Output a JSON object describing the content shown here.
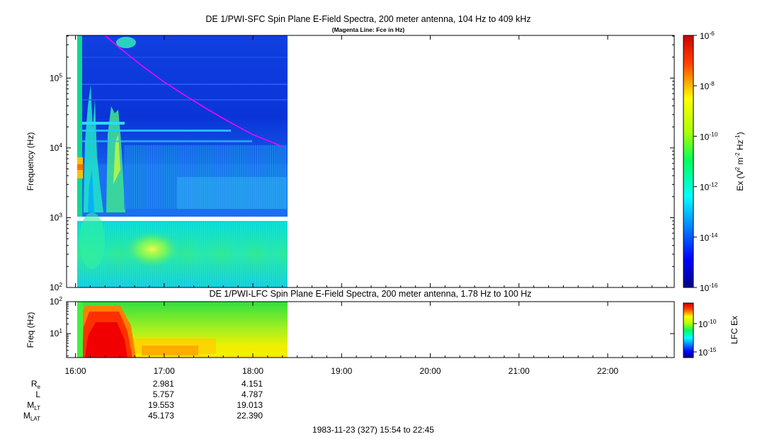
{
  "chart_data": [
    {
      "type": "heatmap",
      "title": "DE 1/PWI-SFC  Spin Plane E-Field Spectra, 200 meter antenna, 104 Hz to 409 kHz",
      "subtitle": "(Magenta Line: Fce in Hz)",
      "ylabel": "Frequency (Hz)",
      "yscale": "log",
      "ylim": [
        100,
        409000
      ],
      "y_ticks": [
        {
          "value": 100,
          "mant": "10",
          "exp": "2"
        },
        {
          "value": 1000,
          "mant": "10",
          "exp": "3"
        },
        {
          "value": 10000,
          "mant": "10",
          "exp": "4"
        },
        {
          "value": 100000,
          "mant": "10",
          "exp": "5"
        }
      ],
      "xlim": [
        "15:54",
        "22:45"
      ],
      "data_range": [
        "16:05",
        "18:24"
      ],
      "colorbar": {
        "label_main": "Ex (V",
        "label_sup1": "2",
        "label_mid": " m",
        "label_sup2": "-2",
        "label_mid2": " Hz",
        "label_sup3": "-1",
        "label_end": ")",
        "scale": "log",
        "range": [
          1e-16,
          1e-06
        ],
        "ticks": [
          {
            "value": 1e-06,
            "mant": "10",
            "exp": "-6"
          },
          {
            "value": 1e-08,
            "mant": "10",
            "exp": "-8"
          },
          {
            "value": 1e-10,
            "mant": "10",
            "exp": "-10"
          },
          {
            "value": 1e-12,
            "mant": "10",
            "exp": "-12"
          },
          {
            "value": 1e-14,
            "mant": "10",
            "exp": "-14"
          },
          {
            "value": 1e-16,
            "mant": "10",
            "exp": "-16"
          }
        ]
      },
      "fce_line": {
        "color": "#ff00ff",
        "points": [
          {
            "t": "16:20",
            "f": 409000
          },
          {
            "t": "16:30",
            "f": 270000
          },
          {
            "t": "16:45",
            "f": 150000
          },
          {
            "t": "17:00",
            "f": 88000
          },
          {
            "t": "17:15",
            "f": 55000
          },
          {
            "t": "17:30",
            "f": 35000
          },
          {
            "t": "17:45",
            "f": 23000
          },
          {
            "t": "18:00",
            "f": 15500
          },
          {
            "t": "18:20",
            "f": 10500
          }
        ]
      }
    },
    {
      "type": "heatmap",
      "title": "DE 1/PWI-LFC  Spin Plane E-Field Spectra, 200 meter antenna, 1.78 Hz to 100 Hz",
      "ylabel": "Freq (Hz)",
      "yscale": "log",
      "ylim": [
        1.78,
        100
      ],
      "y_ticks": [
        {
          "value": 10,
          "mant": "10",
          "exp": "1"
        },
        {
          "value": 100,
          "mant": "10",
          "exp": "2"
        }
      ],
      "xlim": [
        "15:54",
        "22:45"
      ],
      "data_range": [
        "16:05",
        "18:24"
      ],
      "colorbar": {
        "label": "LFC Ex",
        "ticks": [
          {
            "value": 1e-10,
            "mant": "10",
            "exp": "-10"
          },
          {
            "value": 1e-15,
            "mant": "10",
            "exp": "-15"
          }
        ]
      }
    }
  ],
  "x_axis": {
    "ticks": [
      "16:00",
      "17:00",
      "18:00",
      "19:00",
      "20:00",
      "21:00",
      "22:00"
    ]
  },
  "ephemeris": [
    {
      "name": "R",
      "sub": "e",
      "values": [
        "2.981",
        "4.151"
      ]
    },
    {
      "name": "L",
      "sub": "",
      "values": [
        "5.757",
        "4.787"
      ]
    },
    {
      "name": "M",
      "sub": "LT",
      "values": [
        "19.553",
        "19.013"
      ]
    },
    {
      "name": "M",
      "sub": "LAT",
      "values": [
        "45.173",
        "22.390"
      ]
    }
  ],
  "footer": {
    "date_range": "1983-11-23 (327) 15:54 to 22:45"
  }
}
